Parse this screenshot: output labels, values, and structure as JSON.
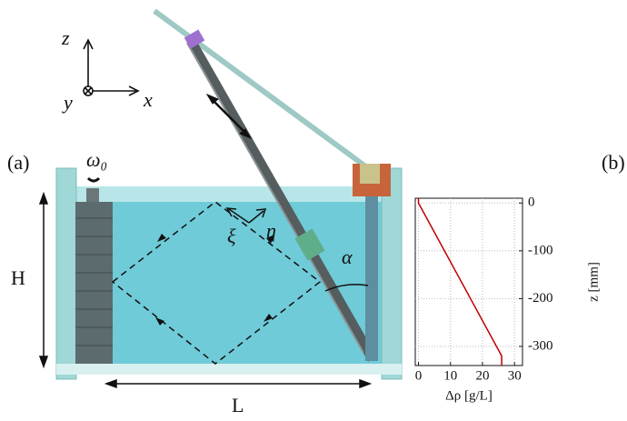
{
  "panel_labels": {
    "a": "(a)",
    "b": "(b)"
  },
  "axes_labels": {
    "z": "z",
    "y": "y",
    "x": "x"
  },
  "diagram": {
    "omega": "ω₀",
    "xi": "ξ",
    "eta": "η",
    "alpha": "α",
    "height": "H",
    "length": "L"
  },
  "chart_data": {
    "type": "line",
    "x_label": "Δρ [g/L]",
    "y_label": "z [mm]",
    "xlim": [
      -1,
      32.5
    ],
    "ylim": [
      -340,
      10
    ],
    "xticks": [
      0,
      10,
      20,
      30
    ],
    "yticks": [
      0,
      -100,
      -200,
      -300
    ],
    "grid": true,
    "series": [
      {
        "color": "#c00000",
        "x": [
          0,
          0,
          26,
          26
        ],
        "values": [
          10,
          0,
          -320,
          -340
        ]
      }
    ]
  }
}
